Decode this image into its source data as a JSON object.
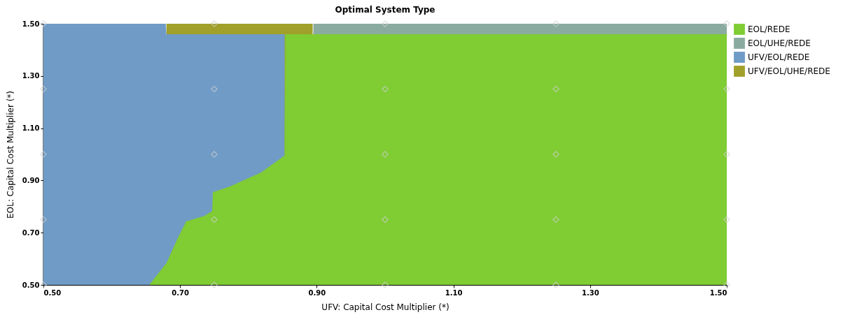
{
  "chart_data": {
    "type": "area",
    "title": "Optimal System Type",
    "xlabel": "UFV: Capital Cost Multiplier (*)",
    "ylabel": "EOL: Capital Cost Multiplier (*)",
    "x": [
      0.5,
      0.655,
      0.679,
      0.68,
      0.696,
      0.709,
      0.736,
      0.747,
      0.748,
      0.773,
      0.818,
      0.853,
      0.854,
      0.894,
      0.895,
      1.5
    ],
    "series": [
      {
        "name": "EOL/REDE",
        "color": "#7fcc33",
        "values": [
          0.5,
          0.5,
          0.58,
          0.583,
          0.676,
          0.743,
          0.765,
          0.783,
          0.855,
          0.877,
          0.93,
          0.995,
          1.46,
          1.46,
          1.46,
          1.46
        ]
      },
      {
        "name": "EOL/UHE/REDE",
        "color": "#8aaba0",
        "values": [
          null,
          null,
          null,
          null,
          null,
          null,
          null,
          null,
          null,
          null,
          null,
          null,
          null,
          null,
          1.5,
          1.5
        ]
      },
      {
        "name": "UFV/EOL/REDE",
        "color": "#6f9bc6",
        "values": [
          1.5,
          1.5,
          1.5,
          1.46,
          1.46,
          1.46,
          1.46,
          1.46,
          1.46,
          1.46,
          1.46,
          1.46,
          null,
          null,
          null,
          null
        ]
      },
      {
        "name": "UFV/EOL/UHE/REDE",
        "color": "#a0a02a",
        "values": [
          null,
          null,
          null,
          1.5,
          1.5,
          1.5,
          1.5,
          1.5,
          1.5,
          1.5,
          1.5,
          1.5,
          1.5,
          1.5,
          null,
          null
        ]
      },
      {
        "type": "scatter",
        "color": "#d0d0d0",
        "marker": "diamond",
        "x": [
          0.5,
          0.75,
          1.0,
          1.25,
          1.5,
          0.5,
          0.75,
          1.0,
          1.25,
          1.5,
          0.5,
          0.75,
          1.0,
          1.25,
          1.5,
          0.5,
          0.75,
          1.0,
          1.25,
          1.5,
          0.5,
          0.75,
          1.0,
          1.25,
          1.5
        ],
        "values": [
          0.5,
          0.5,
          0.5,
          0.5,
          0.5,
          0.75,
          0.75,
          0.75,
          0.75,
          0.75,
          1.0,
          1.0,
          1.0,
          1.0,
          1.0,
          1.25,
          1.25,
          1.25,
          1.25,
          1.25,
          1.5,
          1.5,
          1.5,
          1.5,
          1.5
        ]
      }
    ],
    "xlim": [
      0.5,
      1.5
    ],
    "ylim": [
      0.5,
      1.5
    ],
    "xticks": [
      {
        "value": 0.5,
        "label": "0.50"
      },
      {
        "value": 0.7,
        "label": "0.70"
      },
      {
        "value": 0.9,
        "label": "0.90"
      },
      {
        "value": 1.1,
        "label": "1.10"
      },
      {
        "value": 1.3,
        "label": "1.30"
      },
      {
        "value": 1.5,
        "label": "1.50"
      }
    ],
    "yticks": [
      {
        "value": 0.5,
        "label": "0.50"
      },
      {
        "value": 0.7,
        "label": "0.70"
      },
      {
        "value": 0.9,
        "label": "0.90"
      },
      {
        "value": 1.1,
        "label": "1.10"
      },
      {
        "value": 1.3,
        "label": "1.30"
      },
      {
        "value": 1.5,
        "label": "1.50"
      }
    ],
    "legend": "top right"
  }
}
